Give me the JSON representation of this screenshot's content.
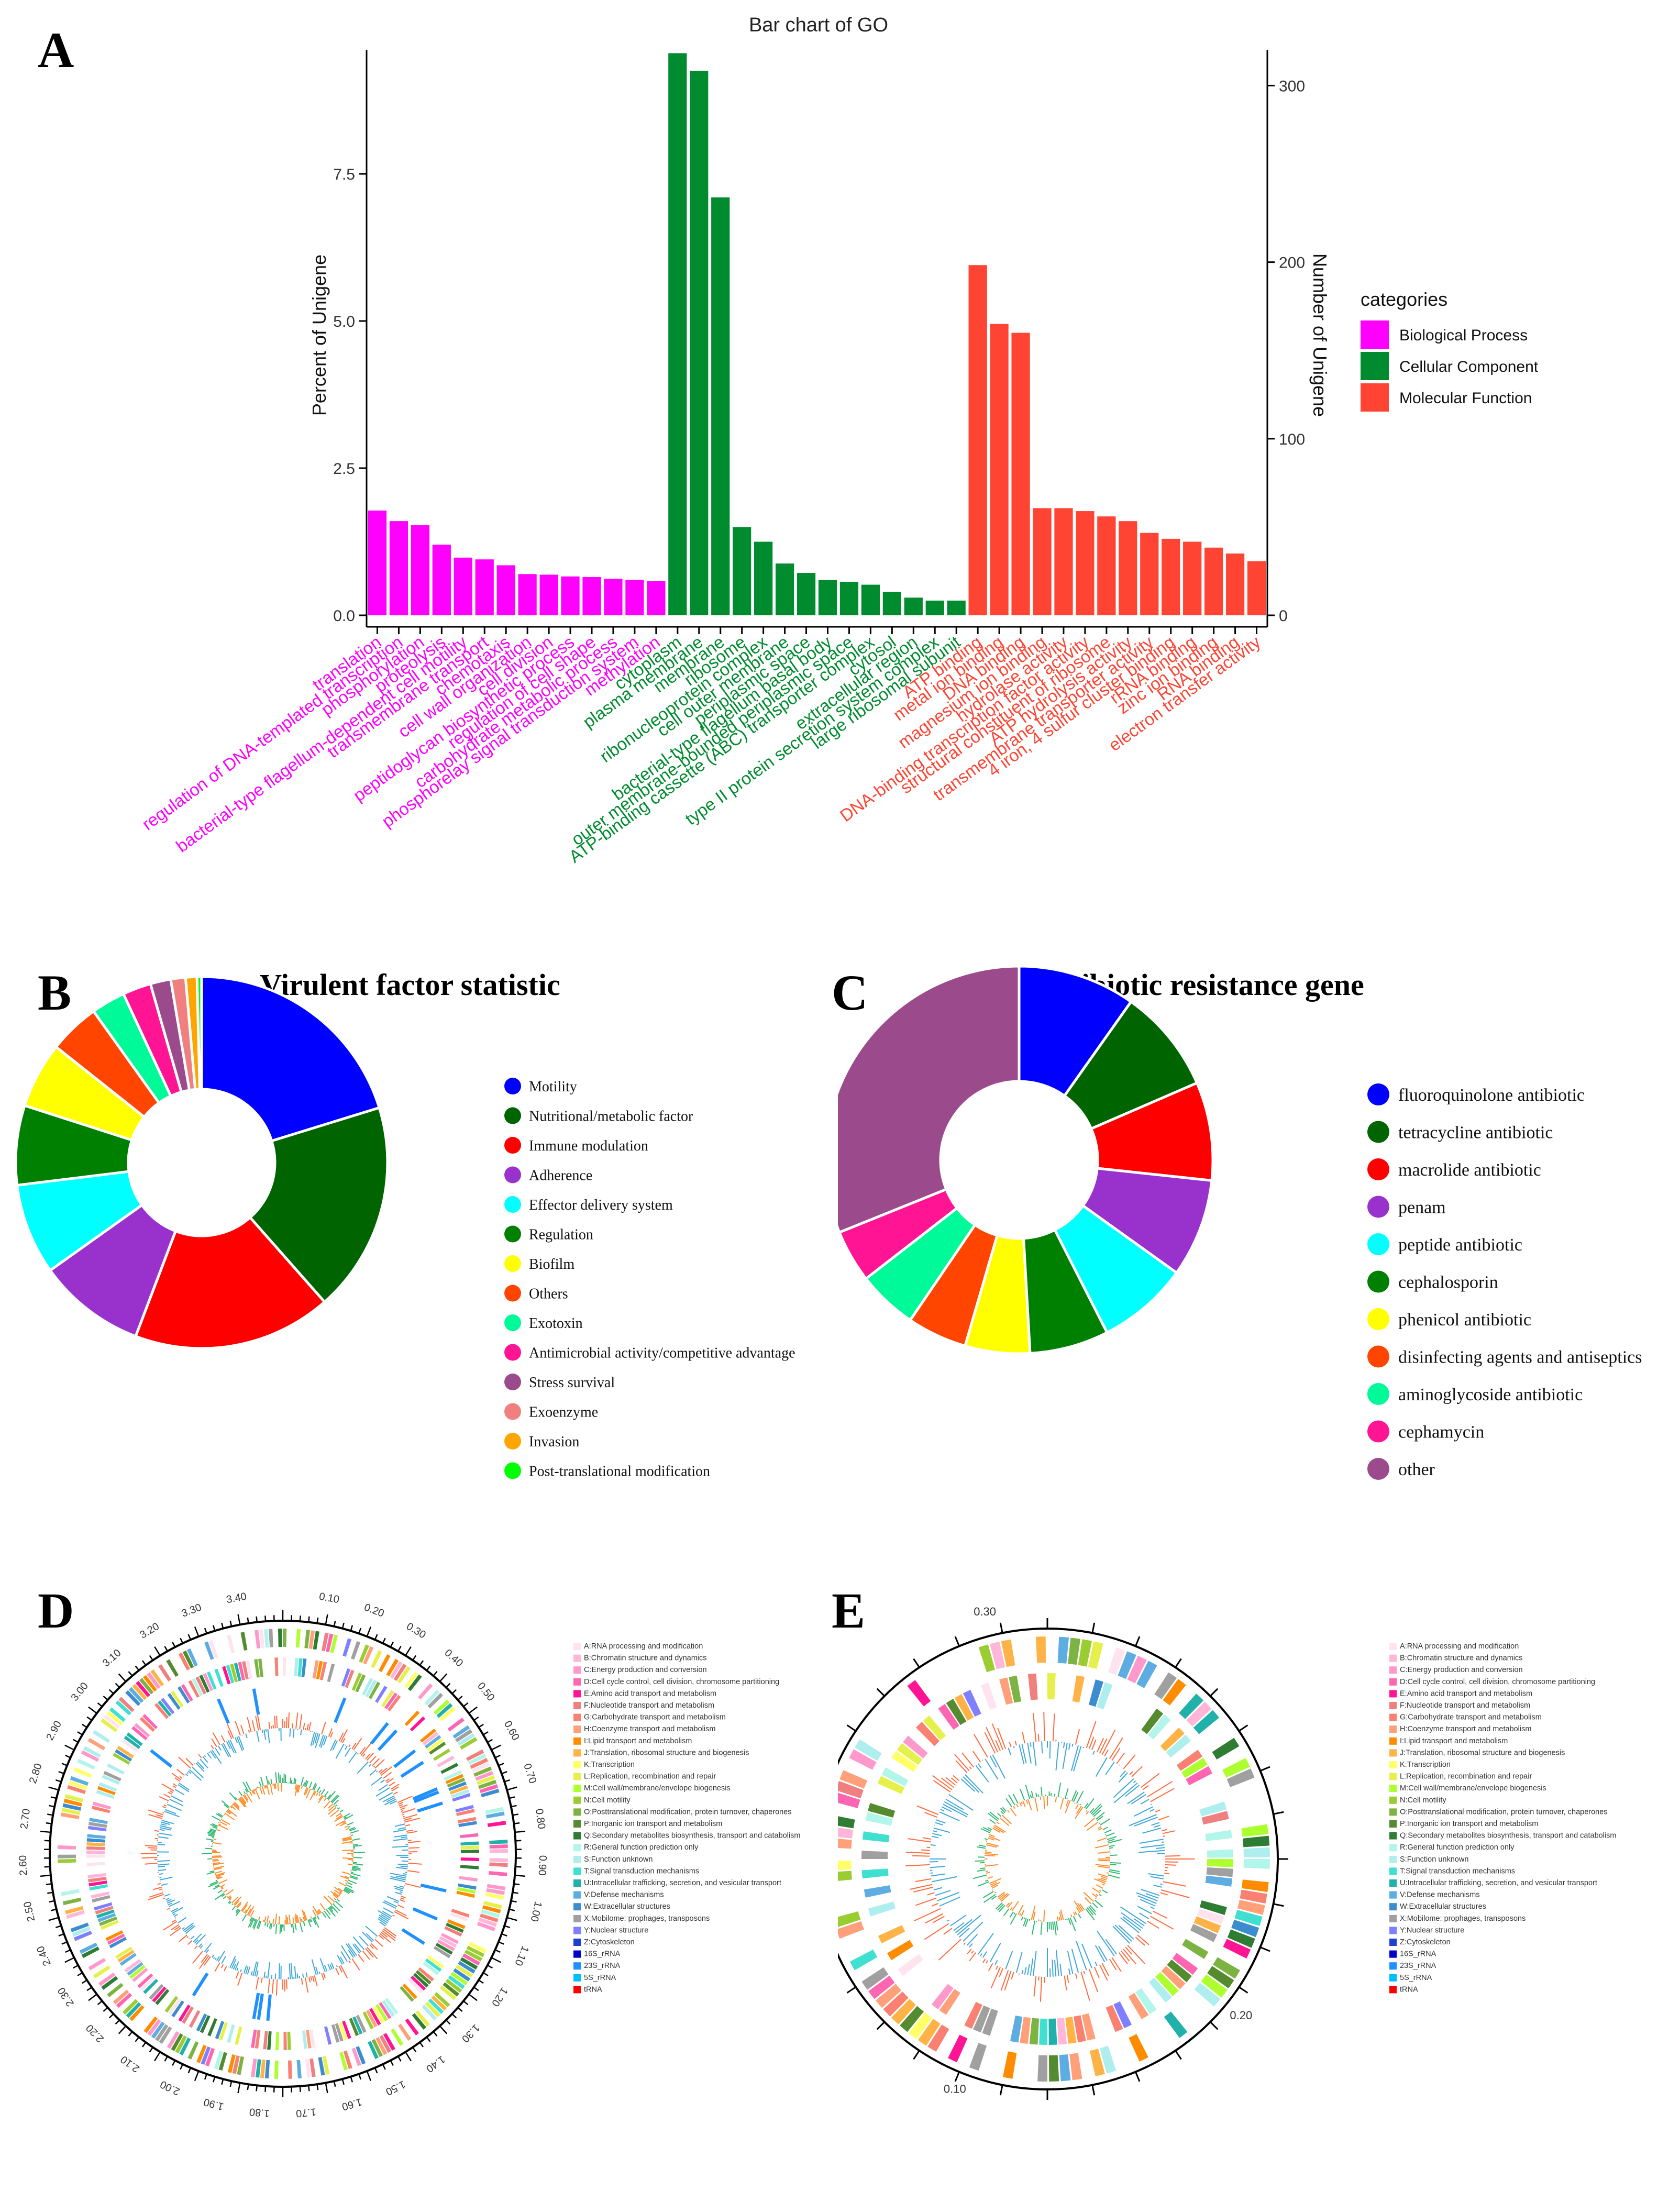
{
  "panels": {
    "A": "A",
    "B": "B",
    "C": "C",
    "D": "D",
    "E": "E"
  },
  "chart_data": [
    {
      "id": "go_bar",
      "type": "bar",
      "title": "Bar chart of GO",
      "ylabel": "Percent of Unigene",
      "y2label": "Number of Unigene",
      "ylim": [
        0,
        9.6
      ],
      "y2lim": [
        0,
        320
      ],
      "yticks": [
        "0.0",
        "2.5",
        "5.0",
        "7.5"
      ],
      "y2ticks": [
        "0",
        "100",
        "200",
        "300"
      ],
      "legend_title": "categories",
      "categories_legend": [
        {
          "name": "Biological Process",
          "color": "#FF00FF"
        },
        {
          "name": "Cellular Component",
          "color": "#008B2E"
        },
        {
          "name": "Molecular Function",
          "color": "#FF4433"
        }
      ],
      "categories": [
        "translation",
        "regulation of DNA-templated transcription",
        "phosphorylation",
        "proteolysis",
        "bacterial-type flagellum-dependent cell motility",
        "transmembrane transport",
        "chemotaxis",
        "cell wall organization",
        "cell division",
        "peptidoglycan biosynthetic process",
        "regulation of cell shape",
        "carbohydrate metabolic process",
        "phosphorelay signal transduction system",
        "methylation",
        "cytoplasm",
        "plasma membrane",
        "membrane",
        "ribosome",
        "ribonucleoprotein complex",
        "cell outer membrane",
        "periplasmic space",
        "bacterial-type flagellum basal body",
        "outer membrane-bounded periplasmic space",
        "ATP-binding cassette (ABC) transporter complex",
        "cytosol",
        "extracellular region",
        "type II protein secretion system complex",
        "large ribosomal subunit",
        "ATP binding",
        "metal ion binding",
        "DNA binding",
        "magnesium ion binding",
        "hydrolase activity",
        "DNA-binding transcription factor activity",
        "structural constituent of ribosome",
        "ATP hydrolysis activity",
        "transmembrane transporter activity",
        "4 iron, 4 sulfur cluster binding",
        "rRNA binding",
        "zinc ion binding",
        "RNA binding",
        "electron transfer activity"
      ],
      "groups": [
        "BP",
        "BP",
        "BP",
        "BP",
        "BP",
        "BP",
        "BP",
        "BP",
        "BP",
        "BP",
        "BP",
        "BP",
        "BP",
        "BP",
        "CC",
        "CC",
        "CC",
        "CC",
        "CC",
        "CC",
        "CC",
        "CC",
        "CC",
        "CC",
        "CC",
        "CC",
        "CC",
        "CC",
        "MF",
        "MF",
        "MF",
        "MF",
        "MF",
        "MF",
        "MF",
        "MF",
        "MF",
        "MF",
        "MF",
        "MF",
        "MF",
        "MF"
      ],
      "values": [
        1.78,
        1.6,
        1.53,
        1.2,
        0.98,
        0.95,
        0.85,
        0.7,
        0.69,
        0.66,
        0.65,
        0.62,
        0.6,
        0.58,
        9.55,
        9.25,
        7.1,
        1.5,
        1.25,
        0.88,
        0.72,
        0.6,
        0.57,
        0.52,
        0.4,
        0.3,
        0.25,
        0.25,
        5.95,
        4.95,
        4.8,
        1.82,
        1.82,
        1.77,
        1.68,
        1.6,
        1.4,
        1.3,
        1.25,
        1.15,
        1.05,
        0.92
      ]
    },
    {
      "id": "virulence_donut",
      "type": "pie",
      "title": "Virulent factor statistic",
      "labels": [
        "Motility",
        "Nutritional/metabolic factor",
        "Immune modulation",
        "Adherence",
        "Effector delivery system",
        "Regulation",
        "Biofilm",
        "Others",
        "Exotoxin",
        "Antimicrobial activity/competitive advantage",
        "Stress survival",
        "Exoenzyme",
        "Invasion",
        "Post-translational modification"
      ],
      "values": [
        20.5,
        18.5,
        17.5,
        9.5,
        8,
        7,
        5.8,
        4.5,
        3,
        2.5,
        1.8,
        1.3,
        1,
        0.4
      ],
      "colors": [
        "#0000FF",
        "#006400",
        "#FF0000",
        "#9932CC",
        "#00FFFF",
        "#008000",
        "#FFFF00",
        "#FF4500",
        "#00FA9A",
        "#FF1493",
        "#9B4B8B",
        "#F08080",
        "#FFA500",
        "#00FF00"
      ]
    },
    {
      "id": "antibiotic_donut",
      "type": "pie",
      "title": "Antibiotic resistance gene",
      "labels": [
        "fluoroquinolone antibiotic",
        "tetracycline antibiotic",
        "macrolide antibiotic",
        "penam",
        "peptide antibiotic",
        "cephalosporin",
        "phenicol antibiotic",
        "disinfecting agents and antiseptics",
        "aminoglycoside antibiotic",
        "cephamycin",
        "other"
      ],
      "values": [
        9.8,
        8.7,
        8.2,
        8.2,
        7.6,
        6.6,
        5.4,
        5.0,
        5.0,
        4.4,
        31.1
      ],
      "colors": [
        "#0000FF",
        "#006400",
        "#FF0000",
        "#9932CC",
        "#00FFFF",
        "#008000",
        "#FFFF00",
        "#FF4500",
        "#00FA9A",
        "#FF1493",
        "#9B4B8B"
      ]
    }
  ],
  "circos": {
    "legend_items": [
      {
        "label": "A:RNA processing and modification",
        "color": "#FFE4F0"
      },
      {
        "label": "B:Chromatin structure and dynamics",
        "color": "#FFB6D9"
      },
      {
        "label": "C:Energy production and conversion",
        "color": "#FF99CC"
      },
      {
        "label": "D:Cell cycle control, cell division, chromosome partitioning",
        "color": "#FF66B2"
      },
      {
        "label": "E:Amino acid transport and metabolism",
        "color": "#FF1493"
      },
      {
        "label": "F:Nucleotide transport and metabolism",
        "color": "#F08080"
      },
      {
        "label": "G:Carbohydrate transport and metabolism",
        "color": "#FA8072"
      },
      {
        "label": "H:Coenzyme transport and metabolism",
        "color": "#FFA07A"
      },
      {
        "label": "I:Lipid transport and metabolism",
        "color": "#FF8C00"
      },
      {
        "label": "J:Translation, ribosomal structure and biogenesis",
        "color": "#FFB347"
      },
      {
        "label": "K:Transcription",
        "color": "#FFFF66"
      },
      {
        "label": "L:Replication, recombination and repair",
        "color": "#E6F04A"
      },
      {
        "label": "M:Cell wall/membrane/envelope biogenesis",
        "color": "#ADFF2F"
      },
      {
        "label": "N:Cell motility",
        "color": "#9ACD32"
      },
      {
        "label": "O:Posttranslational modification, protein turnover, chaperones",
        "color": "#7CB342"
      },
      {
        "label": "P:Inorganic ion transport and metabolism",
        "color": "#558B2F"
      },
      {
        "label": "Q:Secondary metabolites biosynthesis, transport and catabolism",
        "color": "#2E7D32"
      },
      {
        "label": "R:General function prediction only",
        "color": "#B2F5EA"
      },
      {
        "label": "S:Function unknown",
        "color": "#AFEEEE"
      },
      {
        "label": "T:Signal transduction mechanisms",
        "color": "#40E0D0"
      },
      {
        "label": "U:Intracellular trafficking, secretion, and vesicular transport",
        "color": "#20B2AA"
      },
      {
        "label": "V:Defense mechanisms",
        "color": "#5DADE2"
      },
      {
        "label": "W:Extracellular structures",
        "color": "#3C8DCF"
      },
      {
        "label": "X:Mobilome: prophages, transposons",
        "color": "#A0A0A0"
      },
      {
        "label": "Y:Nuclear structure",
        "color": "#7F7FFF"
      },
      {
        "label": "Z:Cytoskeleton",
        "color": "#1E3FCF"
      },
      {
        "label": "16S_rRNA",
        "color": "#0000CD"
      },
      {
        "label": "23S_rRNA",
        "color": "#1E90FF"
      },
      {
        "label": "5S_rRNA",
        "color": "#00BFFF"
      },
      {
        "label": "tRNA",
        "color": "#FF0000"
      }
    ],
    "D_ticks": [
      "0.10",
      "0.20",
      "0.30",
      "0.40",
      "0.50",
      "0.60",
      "0.70",
      "0.80",
      "0.90",
      "1.00",
      "1.10",
      "1.20",
      "1.30",
      "1.40",
      "1.50",
      "1.60",
      "1.70",
      "1.80",
      "1.90",
      "2.00",
      "2.10",
      "2.20",
      "2.30",
      "2.40",
      "2.50",
      "2.60",
      "2.70",
      "2.80",
      "2.90",
      "3.00",
      "3.10",
      "3.20",
      "3.30",
      "3.40"
    ],
    "E_ticks": [
      "0.10",
      "0.20",
      "0.30"
    ]
  }
}
